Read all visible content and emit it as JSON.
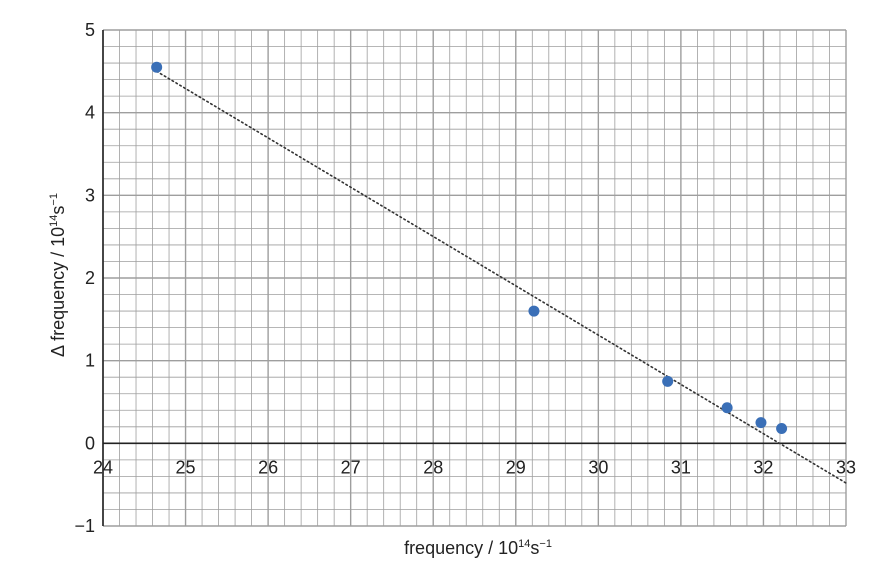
{
  "chart_data": {
    "type": "scatter",
    "xlabel": "frequency / 10",
    "xlabel_exp": "14",
    "xlabel_unit": "s",
    "xlabel_unit_exp": "−1",
    "ylabel": "Δ frequency / 10",
    "ylabel_exp": "14",
    "ylabel_unit": "s",
    "ylabel_unit_exp": "−1",
    "xlim": [
      24,
      33
    ],
    "ylim": [
      -1,
      5
    ],
    "x_ticks": [
      "24",
      "25",
      "26",
      "27",
      "28",
      "29",
      "30",
      "31",
      "32",
      "33"
    ],
    "y_ticks": [
      "−1",
      "0",
      "1",
      "2",
      "3",
      "4",
      "5"
    ],
    "grid": true,
    "minor_grid_per_unit": 5,
    "points": [
      {
        "x": 24.65,
        "y": 4.55
      },
      {
        "x": 29.22,
        "y": 1.6
      },
      {
        "x": 30.84,
        "y": 0.75
      },
      {
        "x": 31.56,
        "y": 0.43
      },
      {
        "x": 31.97,
        "y": 0.25
      },
      {
        "x": 32.22,
        "y": 0.18
      }
    ],
    "trendline": {
      "style": "dotted",
      "x": [
        24.65,
        33.0
      ],
      "y": [
        4.5,
        -0.48
      ]
    },
    "colors": {
      "points": "#3a6fb7",
      "grid": "#9e9e9e",
      "axis": "#222222",
      "trendline": "#333333"
    }
  }
}
